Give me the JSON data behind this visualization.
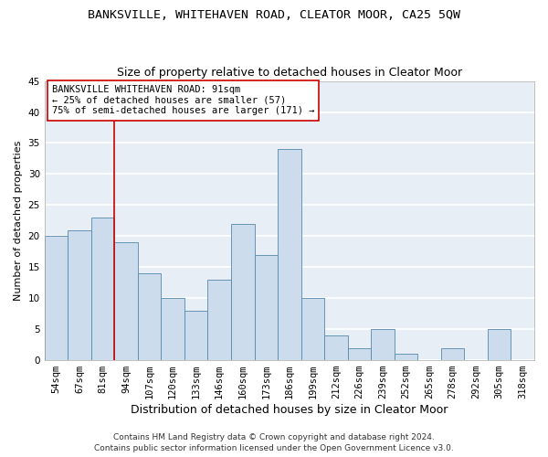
{
  "title": "BANKSVILLE, WHITEHAVEN ROAD, CLEATOR MOOR, CA25 5QW",
  "subtitle": "Size of property relative to detached houses in Cleator Moor",
  "xlabel": "Distribution of detached houses by size in Cleator Moor",
  "ylabel": "Number of detached properties",
  "categories": [
    "54sqm",
    "67sqm",
    "81sqm",
    "94sqm",
    "107sqm",
    "120sqm",
    "133sqm",
    "146sqm",
    "160sqm",
    "173sqm",
    "186sqm",
    "199sqm",
    "212sqm",
    "226sqm",
    "239sqm",
    "252sqm",
    "265sqm",
    "278sqm",
    "292sqm",
    "305sqm",
    "318sqm"
  ],
  "values": [
    20,
    21,
    23,
    19,
    14,
    10,
    8,
    13,
    22,
    17,
    34,
    10,
    4,
    2,
    5,
    1,
    0,
    2,
    0,
    5,
    0
  ],
  "bar_color": "#ccdcec",
  "bar_edge_color": "#5588aa",
  "bg_color": "#e8eef6",
  "grid_color": "#ffffff",
  "vline_x_index": 3,
  "vline_color": "#cc0000",
  "annotation_line1": "BANKSVILLE WHITEHAVEN ROAD: 91sqm",
  "annotation_line2": "← 25% of detached houses are smaller (57)",
  "annotation_line3": "75% of semi-detached houses are larger (171) →",
  "annotation_box_color": "#ffffff",
  "annotation_box_edge": "#cc0000",
  "ylim": [
    0,
    45
  ],
  "yticks": [
    0,
    5,
    10,
    15,
    20,
    25,
    30,
    35,
    40,
    45
  ],
  "footer1": "Contains HM Land Registry data © Crown copyright and database right 2024.",
  "footer2": "Contains public sector information licensed under the Open Government Licence v3.0.",
  "title_fontsize": 9.5,
  "subtitle_fontsize": 9,
  "xlabel_fontsize": 9,
  "ylabel_fontsize": 8,
  "tick_fontsize": 7.5,
  "annotation_fontsize": 7.5,
  "footer_fontsize": 6.5
}
